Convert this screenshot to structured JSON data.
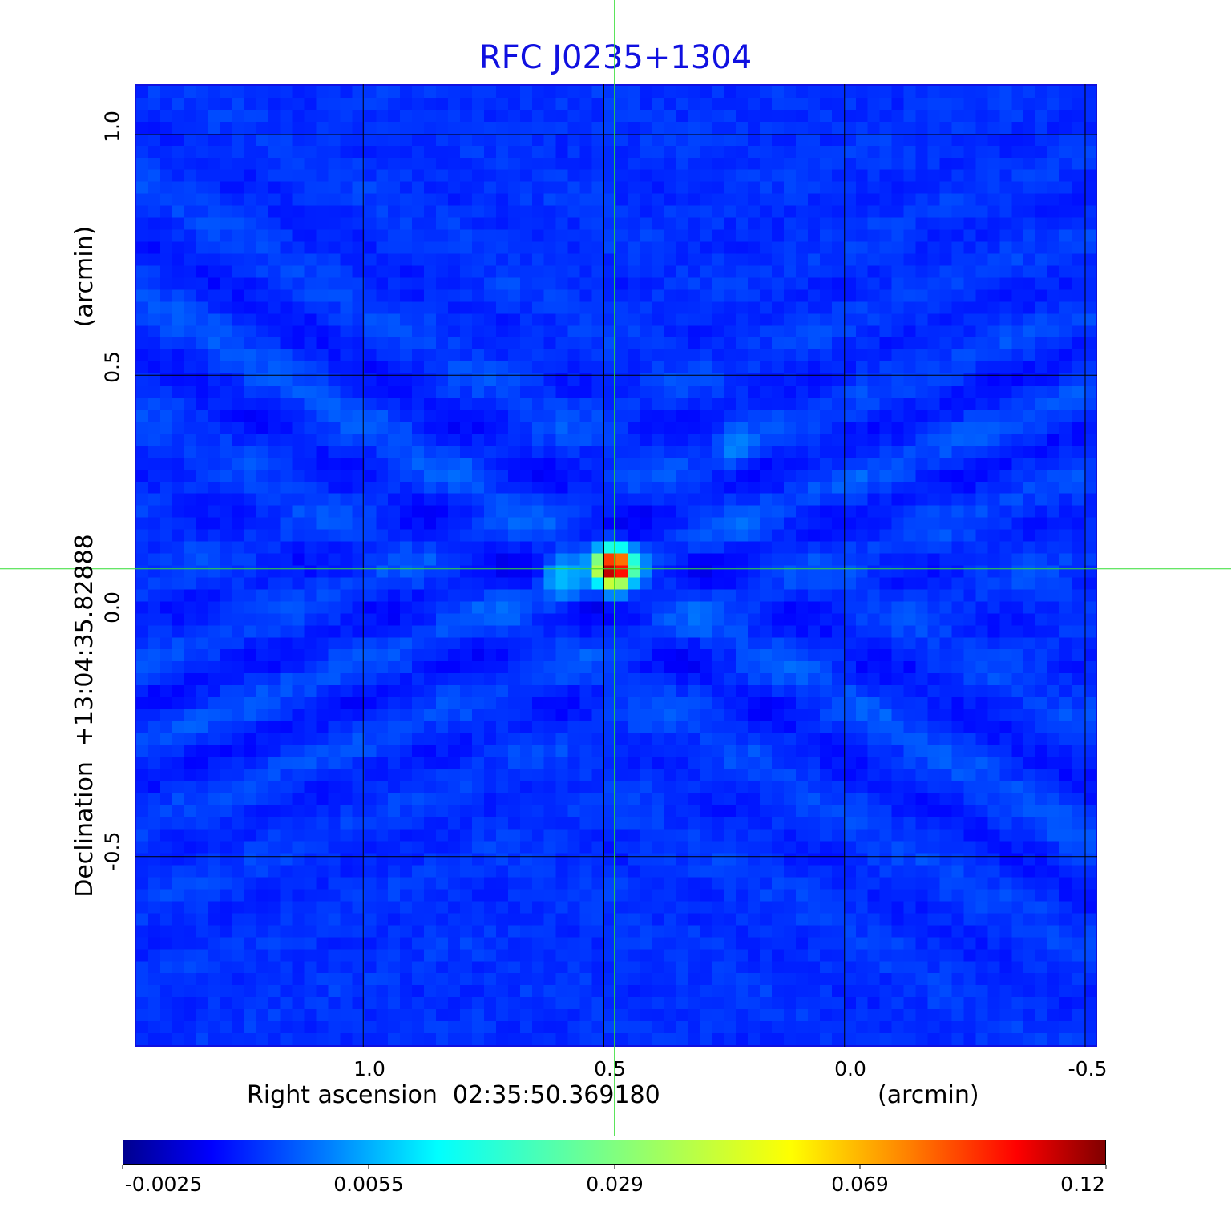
{
  "chart_data": {
    "type": "heatmap",
    "title": "RFC J0235+1304",
    "xlabel": "Right ascension  02:35:50.369180",
    "xunit": "(arcmin)",
    "ylabel": "Declination  +13:04:35.82888",
    "yunit": "(arcmin)",
    "xlim": [
      1.475,
      -0.525
    ],
    "ylim": [
      -0.895,
      1.105
    ],
    "x_ticks": [
      1.0,
      0.5,
      0.0,
      -0.5
    ],
    "x_tick_labels": [
      "1.0",
      "0.5",
      "0.0",
      "-0.5"
    ],
    "y_ticks": [
      1.0,
      0.5,
      0.0,
      -0.5
    ],
    "y_tick_labels": [
      "1.0",
      "0.5",
      "0.0",
      "-0.5"
    ],
    "grid": true,
    "crosshair": {
      "x": 0.478,
      "y": 0.098,
      "color": "#33dd33"
    },
    "colormap": "jet",
    "colorbar": {
      "position": "bottom",
      "ticks": [
        -0.0025,
        0.0055,
        0.029,
        0.069,
        0.12
      ],
      "tick_labels": [
        "-0.0025",
        "0.0055",
        "0.029",
        "0.069",
        "0.12"
      ]
    },
    "background_level": 0.003,
    "sources": [
      {
        "x": 0.478,
        "y": 0.1,
        "peak": 0.12
      },
      {
        "x": 0.585,
        "y": 0.08,
        "peak": 0.012
      },
      {
        "x": 0.225,
        "y": 0.35,
        "peak": 0.006
      }
    ]
  },
  "colors": {
    "title": "#1010e0",
    "frame": "#1010e0",
    "grid": "#000000",
    "crosshair": "#33dd33"
  }
}
